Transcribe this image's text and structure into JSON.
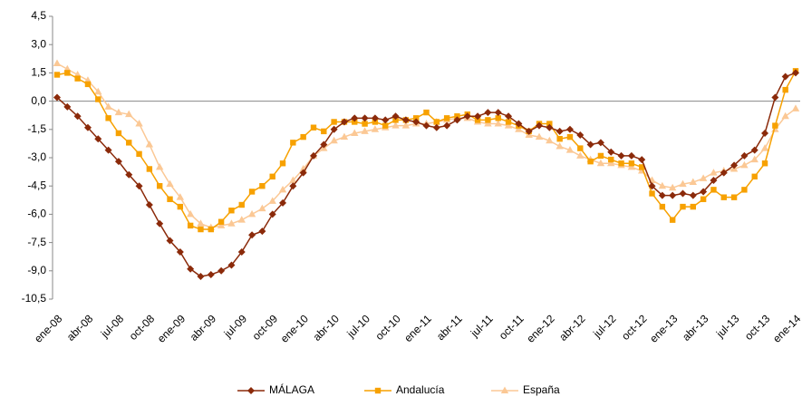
{
  "chart_data": {
    "type": "line",
    "categories": [
      "ene-08",
      null,
      null,
      "abr-08",
      null,
      null,
      "jul-08",
      null,
      null,
      "oct-08",
      null,
      null,
      "ene-09",
      null,
      null,
      "abr-09",
      null,
      null,
      "jul-09",
      null,
      null,
      "oct-09",
      null,
      null,
      "ene-10",
      null,
      null,
      "abr-10",
      null,
      null,
      "jul-10",
      null,
      null,
      "oct-10",
      null,
      null,
      "ene-11",
      null,
      null,
      "abr-11",
      null,
      null,
      "jul-11",
      null,
      null,
      "oct-11",
      null,
      null,
      "ene-12",
      null,
      null,
      "abr-12",
      null,
      null,
      "jul-12",
      null,
      null,
      "oct-12",
      null,
      null,
      "ene-13",
      null,
      null,
      "abr-13",
      null,
      null,
      "jul-13",
      null,
      null,
      "oct-13",
      null,
      null,
      "ene-14"
    ],
    "series": [
      {
        "name": "MÁLAGA",
        "color": "#8b2a0a",
        "marker": "diamond",
        "values": [
          0.2,
          -0.3,
          -0.8,
          -1.4,
          -2.0,
          -2.6,
          -3.2,
          -3.9,
          -4.5,
          -5.5,
          -6.5,
          -7.4,
          -8.0,
          -8.9,
          -9.3,
          -9.2,
          -9.0,
          -8.7,
          -8.0,
          -7.1,
          -6.9,
          -6.0,
          -5.4,
          -4.5,
          -3.8,
          -2.9,
          -2.3,
          -1.5,
          -1.1,
          -0.9,
          -0.9,
          -0.9,
          -1.0,
          -0.8,
          -1.0,
          -1.1,
          -1.3,
          -1.4,
          -1.3,
          -1.0,
          -0.8,
          -0.8,
          -0.6,
          -0.6,
          -0.8,
          -1.2,
          -1.6,
          -1.3,
          -1.4,
          -1.6,
          -1.5,
          -1.8,
          -2.3,
          -2.2,
          -2.7,
          -2.9,
          -2.9,
          -3.1,
          -4.5,
          -5.0,
          -5.0,
          -4.9,
          -5.0,
          -4.8,
          -4.2,
          -3.8,
          -3.4,
          -2.9,
          -2.6,
          -1.7,
          0.2,
          1.3,
          1.5
        ]
      },
      {
        "name": "Andalucía",
        "color": "#f7a100",
        "marker": "square",
        "values": [
          1.4,
          1.5,
          1.2,
          0.9,
          0.1,
          -0.9,
          -1.7,
          -2.2,
          -2.8,
          -3.6,
          -4.5,
          -5.2,
          -5.6,
          -6.6,
          -6.8,
          -6.8,
          -6.4,
          -5.8,
          -5.5,
          -4.8,
          -4.5,
          -4.0,
          -3.3,
          -2.2,
          -1.9,
          -1.4,
          -1.6,
          -1.1,
          -1.1,
          -1.1,
          -1.2,
          -1.1,
          -1.3,
          -1.0,
          -1.0,
          -0.9,
          -0.6,
          -1.1,
          -0.9,
          -0.8,
          -0.7,
          -1.0,
          -1.0,
          -0.9,
          -1.1,
          -1.3,
          -1.6,
          -1.2,
          -1.2,
          -2.0,
          -1.9,
          -2.5,
          -3.2,
          -2.9,
          -3.1,
          -3.3,
          -3.3,
          -3.5,
          -4.9,
          -5.6,
          -6.3,
          -5.6,
          -5.6,
          -5.2,
          -4.7,
          -5.1,
          -5.1,
          -4.7,
          -4.0,
          -3.3,
          -1.3,
          0.6,
          1.6
        ]
      },
      {
        "name": "España",
        "color": "#fbc895",
        "marker": "triangle",
        "values": [
          2.0,
          1.7,
          1.4,
          1.1,
          0.5,
          -0.3,
          -0.6,
          -0.7,
          -1.2,
          -2.3,
          -3.5,
          -4.4,
          -5.1,
          -6.0,
          -6.5,
          -6.7,
          -6.6,
          -6.5,
          -6.3,
          -6.0,
          -5.7,
          -5.3,
          -4.7,
          -4.2,
          -3.6,
          -2.9,
          -2.5,
          -2.1,
          -1.9,
          -1.7,
          -1.6,
          -1.5,
          -1.4,
          -1.3,
          -1.3,
          -1.2,
          -1.2,
          -1.1,
          -1.0,
          -0.9,
          -0.9,
          -1.1,
          -1.2,
          -1.2,
          -1.3,
          -1.5,
          -1.8,
          -1.9,
          -2.1,
          -2.4,
          -2.6,
          -2.9,
          -3.1,
          -3.3,
          -3.3,
          -3.4,
          -3.5,
          -3.7,
          -4.2,
          -4.5,
          -4.6,
          -4.4,
          -4.3,
          -4.1,
          -3.8,
          -3.7,
          -3.6,
          -3.4,
          -3.1,
          -2.5,
          -1.5,
          -0.8,
          -0.4
        ]
      }
    ],
    "ylim": [
      -10.5,
      4.5
    ],
    "yticks": [
      {
        "value": 4.5,
        "label": "4,5"
      },
      {
        "value": 3,
        "label": "3,0"
      },
      {
        "value": 1.5,
        "label": "1,5"
      },
      {
        "value": 0,
        "label": "0,0"
      },
      {
        "value": -1.5,
        "label": "-1,5"
      },
      {
        "value": -3,
        "label": "-3,0"
      },
      {
        "value": -4.5,
        "label": "-4,5"
      },
      {
        "value": -6,
        "label": "-6,0"
      },
      {
        "value": -7.5,
        "label": "-7,5"
      },
      {
        "value": -9,
        "label": "-9,0"
      },
      {
        "value": -10.5,
        "label": "-10,5"
      }
    ],
    "grid": false,
    "legend": "bottom"
  }
}
